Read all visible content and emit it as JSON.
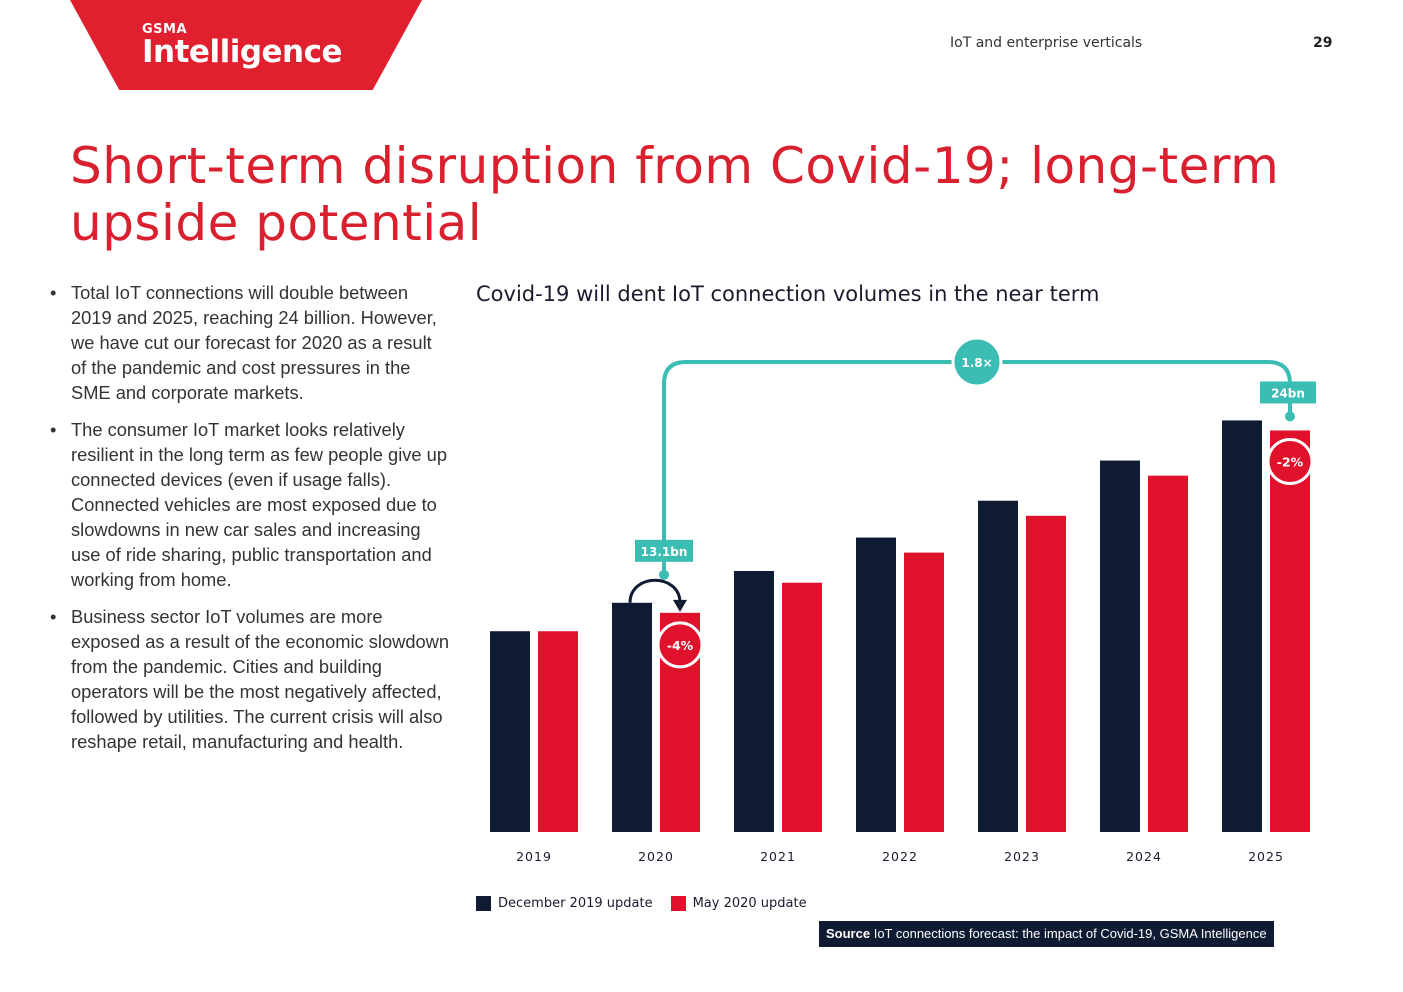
{
  "header": {
    "logo_top": "GSMA",
    "logo_main": "Intelligence",
    "section": "IoT and enterprise verticals",
    "page_number": "29"
  },
  "title_line1": "Short-term disruption from Covid-19; long-term",
  "title_line2": "upside potential",
  "bullets": [
    "Total IoT connections will double between 2019 and 2025, reaching 24 billion. However, we have cut our forecast for 2020 as a result of the pandemic and cost pressures in the SME and corporate markets.",
    "The consumer IoT market looks relatively resilient in the long term as few people give up connected devices (even if usage falls). Connected vehicles are most exposed due to slowdowns in new car sales and increasing use of ride sharing, public transportation and working from home.",
    "Business sector IoT volumes are more exposed as a result of the economic slowdown from the pandemic. Cities and building operators will be the most negatively affected, followed by utilities. The current crisis will also reshape retail, manufacturing and health."
  ],
  "chart_data": {
    "type": "bar",
    "title": "Covid-19 will dent IoT connection volumes in the near term",
    "categories": [
      "2019",
      "2020",
      "2021",
      "2022",
      "2023",
      "2024",
      "2025"
    ],
    "series": [
      {
        "name": "December 2019 update",
        "color": "#0f1a33",
        "values": [
          12.0,
          13.7,
          15.6,
          17.6,
          19.8,
          22.2,
          24.6
        ]
      },
      {
        "name": "May 2020 update",
        "color": "#e0112b",
        "values": [
          12.0,
          13.1,
          14.9,
          16.7,
          18.9,
          21.3,
          24.0
        ]
      }
    ],
    "ylim": [
      0,
      26
    ],
    "annotations": {
      "label_2020": "13.1bn",
      "label_2025": "24bn",
      "multiplier": "1.8×",
      "change_2020": "-4%",
      "change_2025": "-2%"
    },
    "colors": {
      "accent": "#3bbdb4",
      "dark": "#0f1a33",
      "red": "#e0112b"
    }
  },
  "source": {
    "label": "Source",
    "text": "IoT connections forecast: the impact of Covid-19, GSMA Intelligence"
  }
}
